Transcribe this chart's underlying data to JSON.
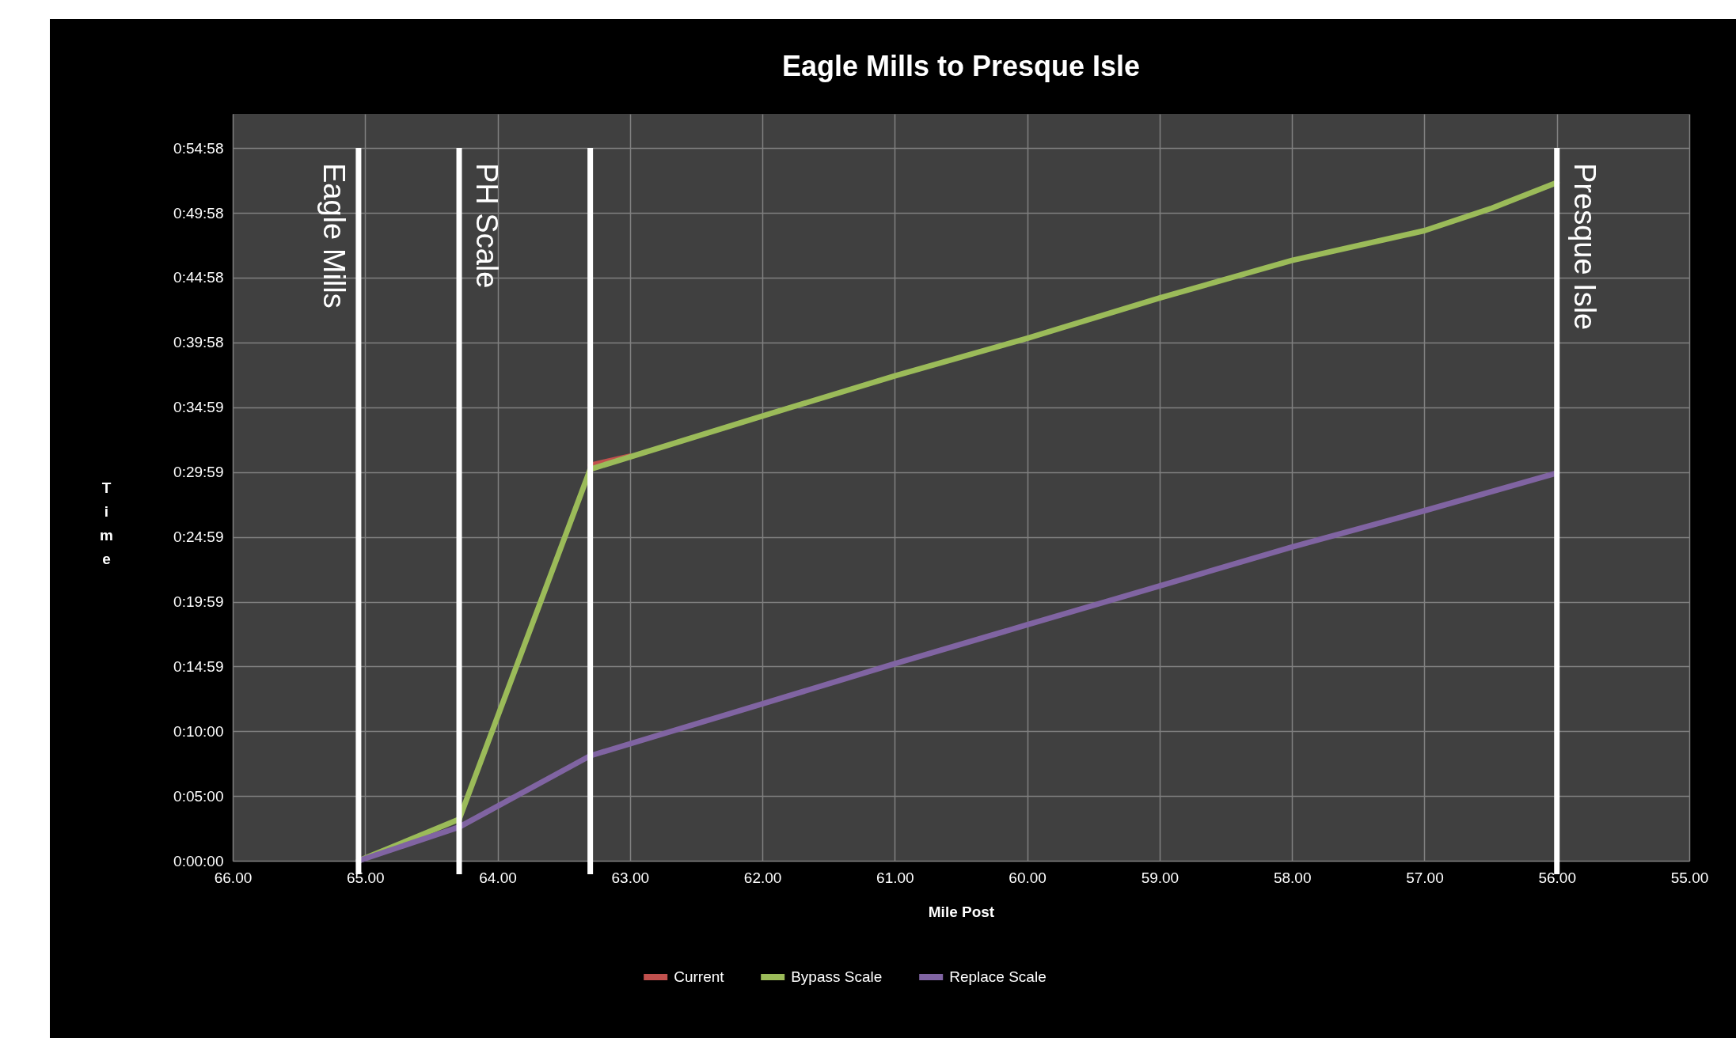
{
  "chart_data": {
    "type": "line",
    "title": "Eagle Mills to Presque Isle",
    "xlabel": "Mile Post",
    "ylabel": "Time",
    "xlim": [
      66,
      55
    ],
    "xticks": [
      {
        "value": 66,
        "label": "66.00"
      },
      {
        "value": 65,
        "label": "65.00"
      },
      {
        "value": 64,
        "label": "64.00"
      },
      {
        "value": 63,
        "label": "63.00"
      },
      {
        "value": 62,
        "label": "62.00"
      },
      {
        "value": 61,
        "label": "61.00"
      },
      {
        "value": 60,
        "label": "60.00"
      },
      {
        "value": 59,
        "label": "59.00"
      },
      {
        "value": 58,
        "label": "58.00"
      },
      {
        "value": 57,
        "label": "57.00"
      },
      {
        "value": 56,
        "label": "56.00"
      },
      {
        "value": 55,
        "label": "55.00"
      }
    ],
    "ylim": [
      0,
      57.6
    ],
    "yticks": [
      {
        "value": 0,
        "label": "0:00:00"
      },
      {
        "value": 5,
        "label": "0:05:00"
      },
      {
        "value": 10,
        "label": "0:10:00"
      },
      {
        "value": 14.98,
        "label": "0:14:59"
      },
      {
        "value": 19.98,
        "label": "0:19:59"
      },
      {
        "value": 24.98,
        "label": "0:24:59"
      },
      {
        "value": 29.98,
        "label": "0:29:59"
      },
      {
        "value": 34.98,
        "label": "0:34:59"
      },
      {
        "value": 39.97,
        "label": "0:39:58"
      },
      {
        "value": 44.97,
        "label": "0:44:58"
      },
      {
        "value": 49.97,
        "label": "0:49:58"
      },
      {
        "value": 54.97,
        "label": "0:54:58"
      }
    ],
    "series": [
      {
        "name": "Current",
        "color": "#c0504d",
        "x": [
          63.3,
          63.0
        ],
        "values": [
          30.5,
          31.2
        ]
      },
      {
        "name": "Bypass Scale",
        "color": "#9bbb59",
        "x": [
          65.05,
          64.29,
          63.3,
          62,
          61,
          60,
          59,
          58,
          57,
          56.5,
          56
        ],
        "values": [
          0,
          3.2,
          30.2,
          34.3,
          37.4,
          40.3,
          43.4,
          46.3,
          48.6,
          50.3,
          52.3
        ]
      },
      {
        "name": "Replace Scale",
        "color": "#8064a2",
        "x": [
          65.05,
          64.29,
          63.3,
          62,
          61,
          60,
          59,
          58,
          57,
          56
        ],
        "values": [
          0,
          2.6,
          8.1,
          12.1,
          15.2,
          18.2,
          21.2,
          24.2,
          27.0,
          29.9
        ]
      }
    ],
    "ref_lines": [
      {
        "axis": "x",
        "value": 65.05,
        "label": "Eagle Mills",
        "color": "#ffffff"
      },
      {
        "axis": "x",
        "value": 64.29,
        "label": "PH Scale",
        "color": "#ffffff"
      },
      {
        "axis": "x",
        "value": 63.3,
        "label": null,
        "color": "#ffffff"
      },
      {
        "axis": "x",
        "value": 56.0,
        "label": "Presque Isle",
        "color": "#ffffff"
      }
    ],
    "grid": true,
    "legend": "bottom",
    "marker": "none",
    "line_style": "solid"
  }
}
